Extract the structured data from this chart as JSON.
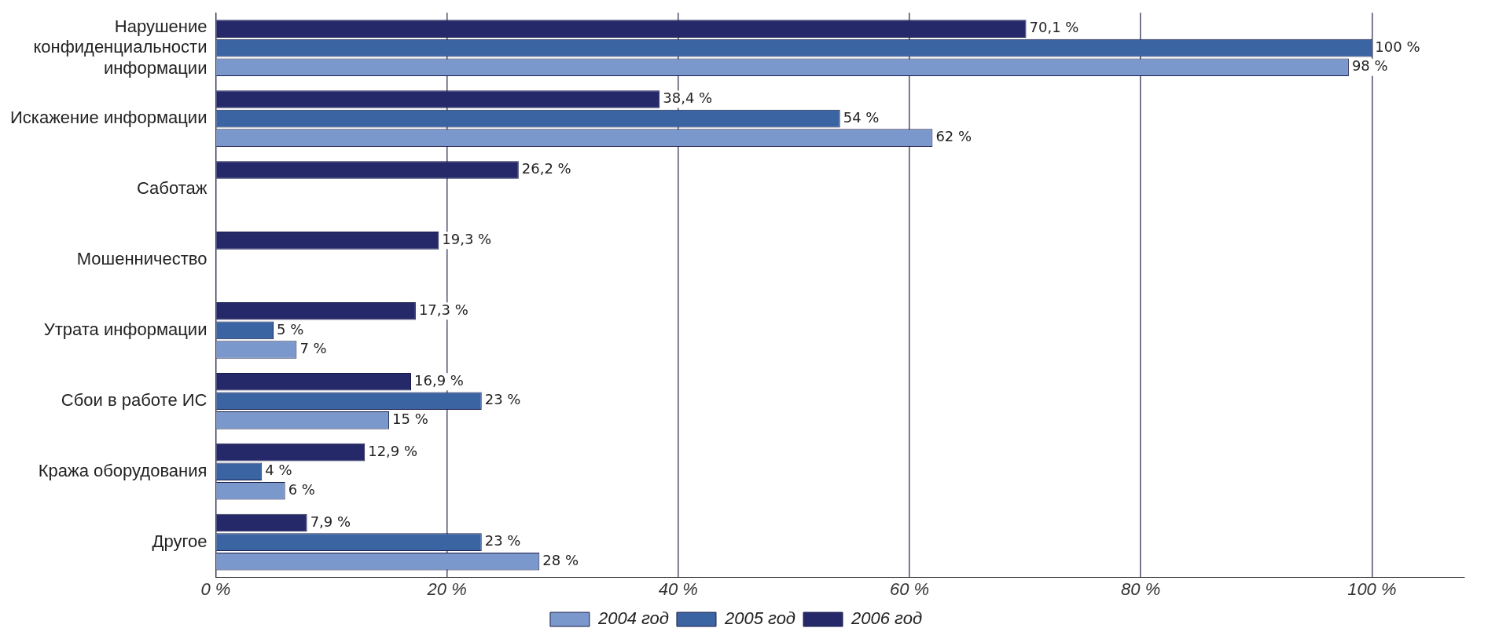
{
  "chart_data": {
    "type": "bar",
    "orientation": "horizontal",
    "categories": [
      "Нарушение конфиденциальности информации",
      "Искажение информации",
      "Саботаж",
      "Мошенничество",
      "Утрата информации",
      "Сбои в работе ИС",
      "Кража оборудования",
      "Другое"
    ],
    "series": [
      {
        "name": "2006 год",
        "color": "#25296a",
        "values": [
          70.1,
          38.4,
          26.2,
          19.3,
          17.3,
          16.9,
          12.9,
          7.9
        ],
        "value_labels": [
          "70,1 %",
          "38,4 %",
          "26,2 %",
          "19,3 %",
          "17,3 %",
          "16,9 %",
          "12,9 %",
          "7,9 %"
        ]
      },
      {
        "name": "2005 год",
        "color": "#3b64a3",
        "values": [
          100,
          54,
          null,
          null,
          5,
          23,
          4,
          23
        ],
        "value_labels": [
          "100 %",
          "54 %",
          null,
          null,
          "5 %",
          "23 %",
          "4 %",
          "23 %"
        ]
      },
      {
        "name": "2004 год",
        "color": "#7a98cc",
        "values": [
          98,
          62,
          null,
          null,
          7,
          15,
          6,
          28
        ],
        "value_labels": [
          "98 %",
          "62 %",
          null,
          null,
          "7 %",
          "15 %",
          "6 %",
          "28 %"
        ]
      }
    ],
    "xlim": [
      0,
      108
    ],
    "xticks": [
      {
        "value": 0,
        "label": "0 %"
      },
      {
        "value": 20,
        "label": "20 %"
      },
      {
        "value": 40,
        "label": "40 %"
      },
      {
        "value": 60,
        "label": "60 %"
      },
      {
        "value": 80,
        "label": "80 %"
      },
      {
        "value": 100,
        "label": "100 %"
      }
    ],
    "grid": "x",
    "legend": "bottom"
  }
}
